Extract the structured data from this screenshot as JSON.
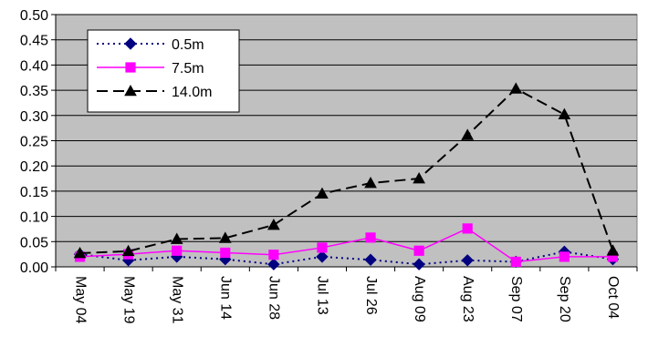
{
  "chart_data": {
    "type": "line",
    "title": "",
    "xlabel": "",
    "ylabel": "",
    "ylim": [
      0,
      0.5
    ],
    "yticks": [
      "0.00",
      "0.05",
      "0.10",
      "0.15",
      "0.20",
      "0.25",
      "0.30",
      "0.35",
      "0.40",
      "0.45",
      "0.50"
    ],
    "grid": "horizontal",
    "legend_position": "top-left",
    "background": "#c0c0c0",
    "categories": [
      "May 04",
      "May 19",
      "May 31",
      "Jun 14",
      "Jun 28",
      "Jul 13",
      "Jul 26",
      "Aug 09",
      "Aug 23",
      "Sep 07",
      "Sep 20",
      "Oct 04"
    ],
    "series": [
      {
        "name": "0.5m",
        "color": "#000080",
        "marker": "diamond",
        "line_style": "dotted",
        "values": [
          0.025,
          0.013,
          0.02,
          0.015,
          0.005,
          0.02,
          0.014,
          0.005,
          0.013,
          0.01,
          0.03,
          0.015
        ]
      },
      {
        "name": "7.5m",
        "color": "#ff00ff",
        "marker": "square",
        "line_style": "solid",
        "values": [
          0.02,
          0.025,
          0.032,
          0.028,
          0.024,
          0.038,
          0.058,
          0.032,
          0.076,
          0.01,
          0.02,
          0.02
        ]
      },
      {
        "name": "14.0m",
        "color": "#000000",
        "marker": "triangle",
        "line_style": "dashed",
        "values": [
          0.027,
          0.031,
          0.055,
          0.057,
          0.083,
          0.145,
          0.166,
          0.175,
          0.261,
          0.353,
          0.302,
          0.032
        ]
      }
    ]
  }
}
